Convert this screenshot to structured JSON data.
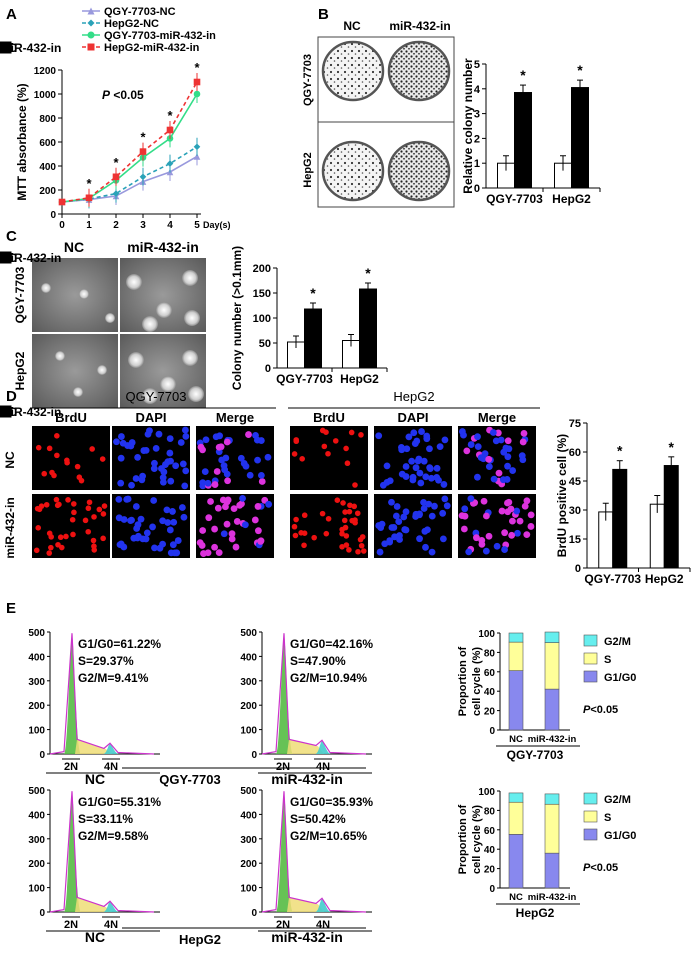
{
  "panels": {
    "a": "A",
    "b": "B",
    "c": "C",
    "d": "D",
    "e": "E"
  },
  "panelA": {
    "chart_data": {
      "type": "line",
      "ylabel": "MTT absorbance (%)",
      "xlabel": "Day(s)",
      "annotation": "P <0.05",
      "x": [
        0,
        1,
        2,
        3,
        4,
        5
      ],
      "xticks": [
        "0",
        "1",
        "2",
        "3",
        "4",
        "5"
      ],
      "yticks": [
        "0",
        "200",
        "400",
        "600",
        "800",
        "1000",
        "1200"
      ],
      "ylim": [
        0,
        1200
      ],
      "stars": [
        "*",
        "*",
        "*",
        "*",
        "*"
      ],
      "series": [
        {
          "name": "QGY-7703-NC",
          "color": "#9999dd",
          "marker": "triangle",
          "dash": false,
          "values": [
            100,
            120,
            150,
            270,
            350,
            480
          ]
        },
        {
          "name": "HepG2-NC",
          "color": "#2aa2b8",
          "marker": "diamond",
          "dash": true,
          "values": [
            100,
            125,
            170,
            310,
            420,
            560
          ]
        },
        {
          "name": "QGY-7703-miR-432-in",
          "color": "#33dd88",
          "marker": "circle",
          "dash": false,
          "values": [
            100,
            130,
            280,
            470,
            630,
            1000
          ]
        },
        {
          "name": "HepG2-miR-432-in",
          "color": "#ee3333",
          "marker": "square",
          "dash": true,
          "values": [
            100,
            135,
            310,
            520,
            700,
            1100
          ]
        }
      ]
    }
  },
  "panelB": {
    "cols": [
      "NC",
      "miR-432-in"
    ],
    "rows": [
      "QGY-7703",
      "HepG2"
    ],
    "chart_data": {
      "type": "bar",
      "categories": [
        "QGY-7703",
        "HepG2"
      ],
      "ylabel": "Relative colony number",
      "yticks": [
        "0",
        "1",
        "2",
        "3",
        "4",
        "5"
      ],
      "ylim": [
        0,
        5
      ],
      "star": "*",
      "series": [
        {
          "name": "NC",
          "values": [
            1,
            1
          ]
        },
        {
          "name": "miR-432-in",
          "values": [
            3.85,
            4.05
          ]
        }
      ]
    }
  },
  "panelC": {
    "cols": [
      "NC",
      "miR-432-in"
    ],
    "rows": [
      "QGY-7703",
      "HepG2"
    ],
    "chart_data": {
      "type": "bar",
      "categories": [
        "QGY-7703",
        "HepG2"
      ],
      "ylabel": "Colony number (>0.1mm)",
      "yticks": [
        "0",
        "50",
        "100",
        "150",
        "200"
      ],
      "ylim": [
        0,
        200
      ],
      "star": "*",
      "series": [
        {
          "name": "NC",
          "values": [
            52,
            55
          ]
        },
        {
          "name": "miR-432-in",
          "values": [
            118,
            158
          ]
        }
      ]
    }
  },
  "panelD": {
    "groups": [
      "QGY-7703",
      "HepG2"
    ],
    "channels": [
      "BrdU",
      "DAPI",
      "Merge",
      "BrdU",
      "DAPI",
      "Merge"
    ],
    "rows": [
      "NC",
      "miR-432-in"
    ],
    "chart_data": {
      "type": "bar",
      "categories": [
        "QGY-7703",
        "HepG2"
      ],
      "ylabel": "BrdU positive cell (%)",
      "yticks": [
        "0",
        "15",
        "30",
        "45",
        "60",
        "75"
      ],
      "ylim": [
        0,
        75
      ],
      "star": "*",
      "series": [
        {
          "name": "NC",
          "values": [
            29,
            33
          ]
        },
        {
          "name": "miR-432-in",
          "values": [
            51,
            53
          ]
        }
      ]
    }
  },
  "panelE": {
    "hist_yticks": [
      "0",
      "100",
      "200",
      "300",
      "400",
      "500"
    ],
    "ploidy": [
      "2N",
      "4N"
    ],
    "histograms": [
      {
        "label": "NC",
        "stats": [
          "G1/G0=61.22%",
          "S=29.37%",
          "G2/M=9.41%"
        ]
      },
      {
        "label": "miR-432-in",
        "stats": [
          "G1/G0=42.16%",
          "S=47.90%",
          "G2/M=10.94%"
        ]
      },
      {
        "label": "NC",
        "stats": [
          "G1/G0=55.31%",
          "S=33.11%",
          "G2/M=9.58%"
        ]
      },
      {
        "label": "miR-432-in",
        "stats": [
          "G1/G0=35.93%",
          "S=50.42%",
          "G2/M=10.65%"
        ]
      }
    ],
    "group_labels": [
      "QGY-7703",
      "HepG2"
    ],
    "chart_data": [
      {
        "type": "bar",
        "stacked": true,
        "title": "QGY-7703",
        "categories": [
          "NC",
          "miR-432-in"
        ],
        "ylabel": "Proportion of cell cycle (%)",
        "yticks": [
          "0",
          "20",
          "40",
          "60",
          "80",
          "100"
        ],
        "ylim": [
          0,
          100
        ],
        "annotation": "P<0.05",
        "series": [
          {
            "name": "G1/G0",
            "color": "#8888ee",
            "values": [
              61.22,
              42.16
            ]
          },
          {
            "name": "S",
            "color": "#ffff99",
            "values": [
              29.37,
              47.9
            ]
          },
          {
            "name": "G2/M",
            "color": "#66eeee",
            "values": [
              9.41,
              10.94
            ]
          }
        ]
      },
      {
        "type": "bar",
        "stacked": true,
        "title": "HepG2",
        "categories": [
          "NC",
          "miR-432-in"
        ],
        "ylabel": "Proportion of cell cycle (%)",
        "yticks": [
          "0",
          "20",
          "40",
          "60",
          "80",
          "100"
        ],
        "ylim": [
          0,
          100
        ],
        "annotation": "P<0.05",
        "series": [
          {
            "name": "G1/G0",
            "color": "#8888ee",
            "values": [
              55.31,
              35.93
            ]
          },
          {
            "name": "S",
            "color": "#ffff99",
            "values": [
              33.11,
              50.42
            ]
          },
          {
            "name": "G2/M",
            "color": "#66eeee",
            "values": [
              9.58,
              10.65
            ]
          }
        ]
      }
    ]
  }
}
